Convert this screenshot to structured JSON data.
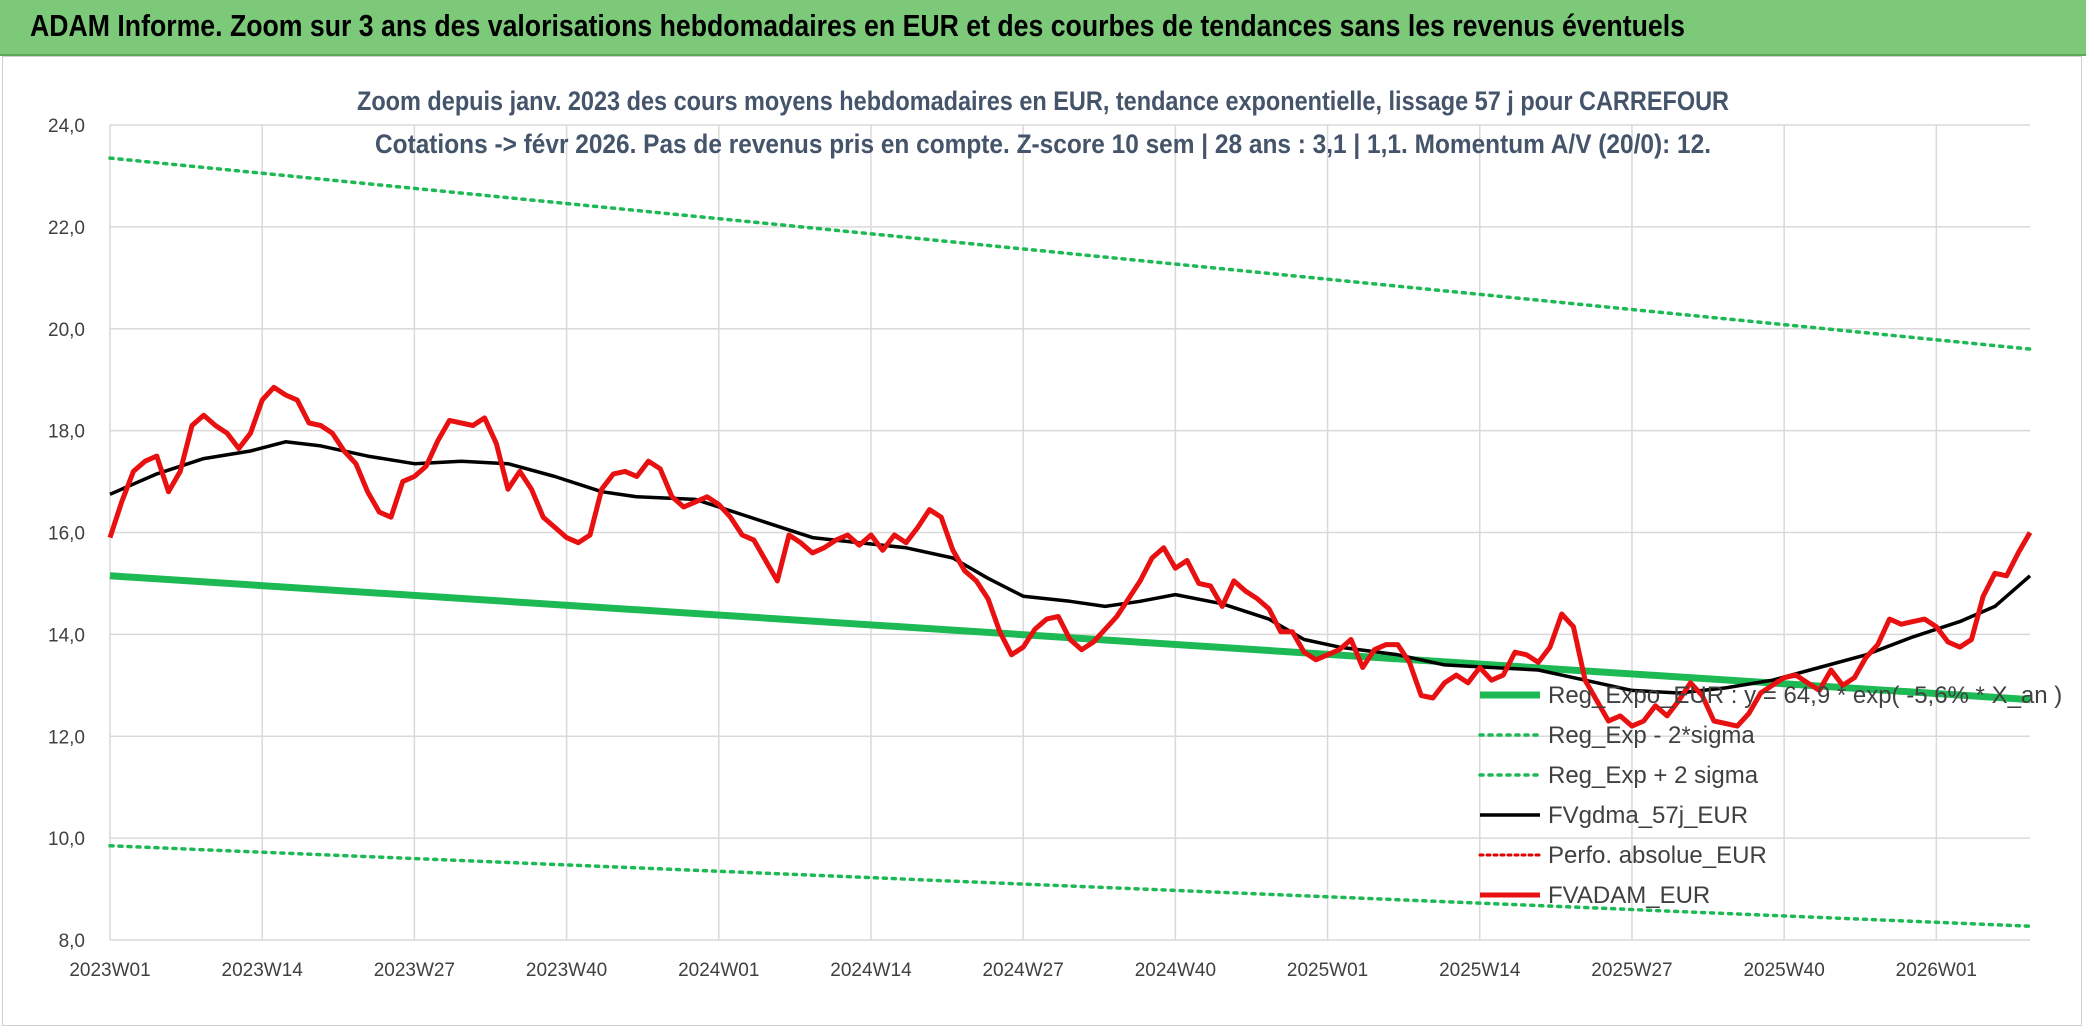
{
  "banner": {
    "title": "ADAM Informe. Zoom sur 3 ans des valorisations hebdomadaires en EUR et des courbes de tendances sans les revenus éventuels"
  },
  "colors": {
    "banner_bg": "#7dc97a",
    "reg_expo": "#1db954",
    "sigma_lines": "#1db954",
    "fvgdma": "#000000",
    "perfo": "#e00000",
    "fvadam": "#e81010",
    "grid": "#d9d9d9"
  },
  "chart_data": {
    "type": "line",
    "title": "Zoom depuis janv. 2023 des cours moyens hebdomadaires en EUR, tendance exponentielle, lissage 57 j pour CARREFOUR",
    "subtitle": "Cotations -> févr 2026. Pas de revenus pris en compte. Z-score 10 sem | 28 ans : 3,1 | 1,1. Momentum A/V (20/0): 12.",
    "xlabel": "",
    "ylabel": "",
    "ylim": [
      8,
      24
    ],
    "y_ticks": [
      "8,0",
      "10,0",
      "12,0",
      "14,0",
      "16,0",
      "18,0",
      "20,0",
      "22,0",
      "24,0"
    ],
    "x_ticks": [
      "2023W01",
      "2023W14",
      "2023W27",
      "2023W40",
      "2024W01",
      "2024W14",
      "2024W27",
      "2024W40",
      "2025W01",
      "2025W14",
      "2025W27",
      "2025W40",
      "2026W01"
    ],
    "x_tick_index": [
      0,
      13,
      26,
      39,
      52,
      65,
      78,
      91,
      104,
      117,
      130,
      143,
      156
    ],
    "x_range": [
      0,
      164
    ],
    "grid": true,
    "legend_position": "bottom-right",
    "series": [
      {
        "name": "Reg_Expo_EUR : y = 64,9 * exp( -5,6% * X_an )",
        "style": "solid-thick",
        "x": [
          0,
          164
        ],
        "values": [
          15.15,
          12.72
        ]
      },
      {
        "name": "Reg_Exp - 2*sigma",
        "style": "dotted",
        "x": [
          0,
          164
        ],
        "values": [
          9.85,
          8.27
        ]
      },
      {
        "name": "Reg_Exp + 2 sigma",
        "style": "dotted",
        "x": [
          0,
          164
        ],
        "values": [
          23.35,
          19.6
        ]
      },
      {
        "name": "FVgdma_57j_EUR",
        "style": "solid",
        "x": [
          0,
          4,
          8,
          12,
          15,
          18,
          22,
          26,
          30,
          34,
          38,
          42,
          45,
          50,
          52,
          56,
          60,
          64,
          68,
          72,
          75,
          78,
          82,
          85,
          88,
          91,
          95,
          99,
          102,
          105,
          110,
          114,
          118,
          122,
          126,
          130,
          134,
          138,
          142,
          146,
          150,
          154,
          158,
          161,
          164
        ],
        "values": [
          16.75,
          17.15,
          17.45,
          17.6,
          17.78,
          17.7,
          17.5,
          17.35,
          17.4,
          17.35,
          17.1,
          16.8,
          16.7,
          16.65,
          16.5,
          16.2,
          15.9,
          15.8,
          15.7,
          15.5,
          15.1,
          14.75,
          14.65,
          14.55,
          14.65,
          14.78,
          14.6,
          14.3,
          13.9,
          13.75,
          13.6,
          13.4,
          13.35,
          13.3,
          13.1,
          12.9,
          12.85,
          12.95,
          13.1,
          13.35,
          13.6,
          13.95,
          14.25,
          14.55,
          15.15
        ]
      },
      {
        "name": "Perfo. absolue_EUR",
        "style": "dotted",
        "x": [],
        "values": []
      },
      {
        "name": "FVADAM_EUR",
        "style": "solid-thick",
        "x": [
          0,
          1,
          2,
          3,
          4,
          5,
          6,
          7,
          8,
          9,
          10,
          11,
          12,
          13,
          14,
          15,
          16,
          17,
          18,
          19,
          20,
          21,
          22,
          23,
          24,
          25,
          26,
          27,
          28,
          29,
          30,
          31,
          32,
          33,
          34,
          35,
          36,
          37,
          38,
          39,
          40,
          41,
          42,
          43,
          44,
          45,
          46,
          47,
          48,
          49,
          50,
          51,
          52,
          53,
          54,
          55,
          56,
          57,
          58,
          59,
          60,
          61,
          62,
          63,
          64,
          65,
          66,
          67,
          68,
          69,
          70,
          71,
          72,
          73,
          74,
          75,
          76,
          77,
          78,
          79,
          80,
          81,
          82,
          83,
          84,
          85,
          86,
          87,
          88,
          89,
          90,
          91,
          92,
          93,
          94,
          95,
          96,
          97,
          98,
          99,
          100,
          101,
          102,
          103,
          104,
          105,
          106,
          107,
          108,
          109,
          110,
          111,
          112,
          113,
          114,
          115,
          116,
          117,
          118,
          119,
          120,
          121,
          122,
          123,
          124,
          125,
          126,
          127,
          128,
          129,
          130,
          131,
          132,
          133,
          134,
          135,
          136,
          137,
          138,
          139,
          140,
          141,
          142,
          143,
          144,
          145,
          146,
          147,
          148,
          149,
          150,
          151,
          152,
          153,
          154,
          155,
          156,
          157,
          158,
          159,
          160,
          161,
          162,
          163,
          164
        ],
        "values": [
          15.9,
          16.6,
          17.2,
          17.4,
          17.5,
          16.8,
          17.2,
          18.1,
          18.3,
          18.1,
          17.95,
          17.65,
          17.95,
          18.6,
          18.85,
          18.7,
          18.6,
          18.15,
          18.1,
          17.95,
          17.6,
          17.35,
          16.8,
          16.4,
          16.3,
          17.0,
          17.1,
          17.3,
          17.8,
          18.2,
          18.15,
          18.1,
          18.25,
          17.75,
          16.85,
          17.2,
          16.85,
          16.3,
          16.1,
          15.9,
          15.8,
          15.95,
          16.85,
          17.15,
          17.2,
          17.1,
          17.4,
          17.25,
          16.7,
          16.5,
          16.6,
          16.7,
          16.55,
          16.3,
          15.95,
          15.85,
          15.45,
          15.05,
          15.95,
          15.8,
          15.6,
          15.7,
          15.85,
          15.95,
          15.75,
          15.95,
          15.65,
          15.95,
          15.8,
          16.1,
          16.45,
          16.3,
          15.65,
          15.25,
          15.05,
          14.7,
          14.05,
          13.6,
          13.75,
          14.1,
          14.3,
          14.35,
          13.9,
          13.7,
          13.85,
          14.1,
          14.35,
          14.7,
          15.05,
          15.5,
          15.7,
          15.3,
          15.45,
          15.0,
          14.95,
          14.55,
          15.05,
          14.85,
          14.7,
          14.5,
          14.05,
          14.05,
          13.65,
          13.5,
          13.6,
          13.7,
          13.9,
          13.35,
          13.7,
          13.8,
          13.8,
          13.45,
          12.8,
          12.75,
          13.05,
          13.2,
          13.05,
          13.35,
          13.1,
          13.2,
          13.65,
          13.6,
          13.45,
          13.75,
          14.4,
          14.15,
          13.1,
          12.7,
          12.3,
          12.4,
          12.2,
          12.3,
          12.6,
          12.4,
          12.7,
          13.05,
          12.8,
          12.3,
          12.25,
          12.2,
          12.45,
          12.85,
          13.0,
          13.15,
          13.2,
          13.05,
          12.9,
          13.3,
          13.0,
          13.15,
          13.55,
          13.8,
          14.3,
          14.2,
          14.25,
          14.3,
          14.15,
          13.85,
          13.75,
          13.9,
          14.75,
          15.2,
          15.15,
          15.6,
          16.0
        ]
      }
    ]
  }
}
